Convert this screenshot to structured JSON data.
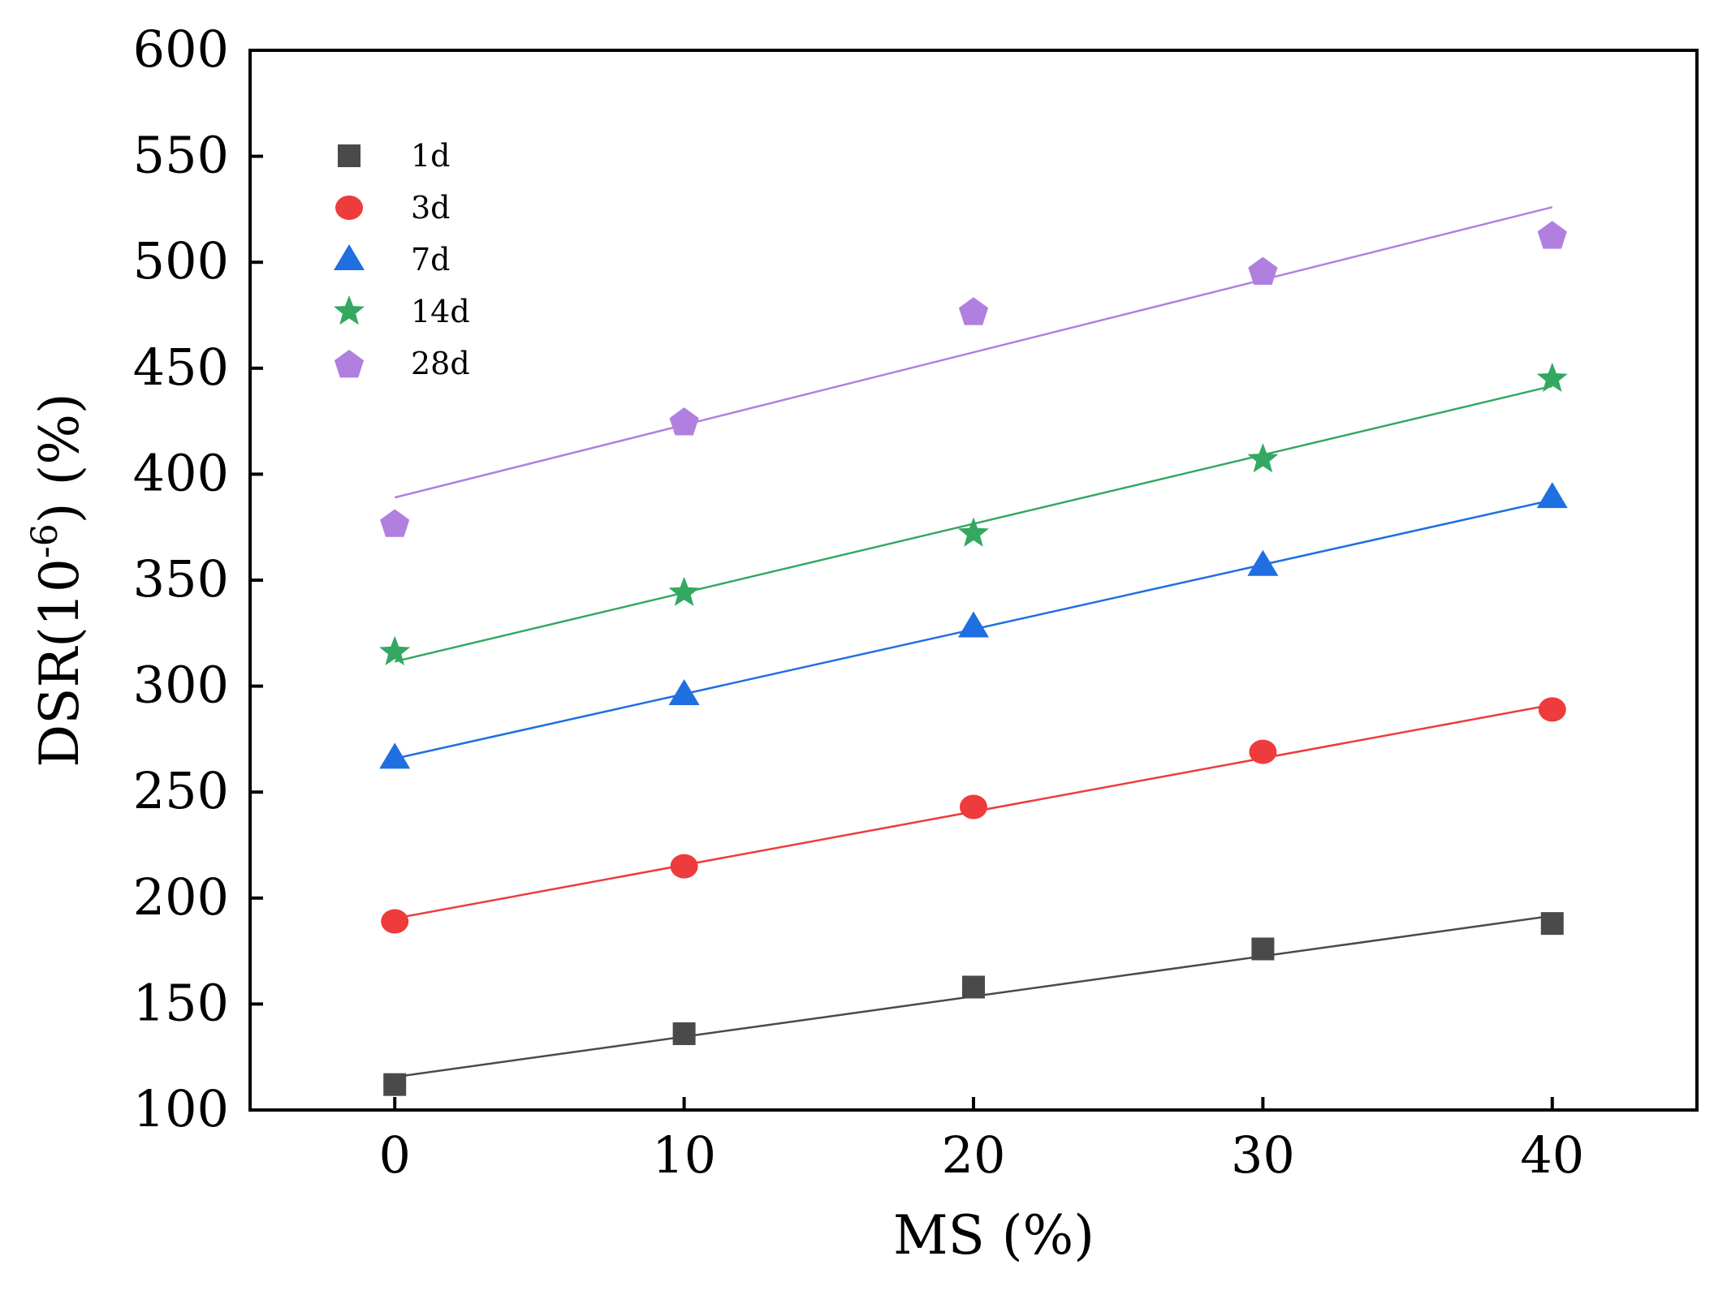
{
  "chart_data": {
    "type": "scatter",
    "xlabel": "MS (%)",
    "ylabel": {
      "prefix": "DSR(10",
      "superscript": "-6",
      "suffix": ") (%)"
    },
    "xlim": [
      -5,
      45
    ],
    "ylim": [
      100,
      600
    ],
    "xticks": [
      0,
      10,
      20,
      30,
      40
    ],
    "yticks": [
      100,
      150,
      200,
      250,
      300,
      350,
      400,
      450,
      500,
      550,
      600
    ],
    "grid": false,
    "legend_position": "top-left",
    "x": [
      0,
      10,
      20,
      30,
      40
    ],
    "series": [
      {
        "name": "1d",
        "marker": "square",
        "color": "#4a4a4a",
        "values": [
          112,
          136,
          158,
          176,
          188
        ],
        "fit": [
          115.6,
          191.6
        ]
      },
      {
        "name": "3d",
        "marker": "circle",
        "color": "#ee3b3b",
        "values": [
          189,
          215,
          243,
          269,
          289
        ],
        "fit": [
          190.4,
          291.2
        ]
      },
      {
        "name": "7d",
        "marker": "triangle",
        "color": "#1f6fe0",
        "values": [
          266,
          296,
          328,
          357,
          389
        ],
        "fit": [
          265.8,
          387.8
        ]
      },
      {
        "name": "14d",
        "marker": "star",
        "color": "#33a861",
        "values": [
          316,
          344,
          372,
          407,
          445
        ],
        "fit": [
          311.6,
          441.6
        ]
      },
      {
        "name": "28d",
        "marker": "pentagon",
        "color": "#b07fe0",
        "values": [
          377,
          425,
          477,
          496,
          513
        ],
        "fit": [
          389.0,
          526.0
        ]
      }
    ]
  }
}
